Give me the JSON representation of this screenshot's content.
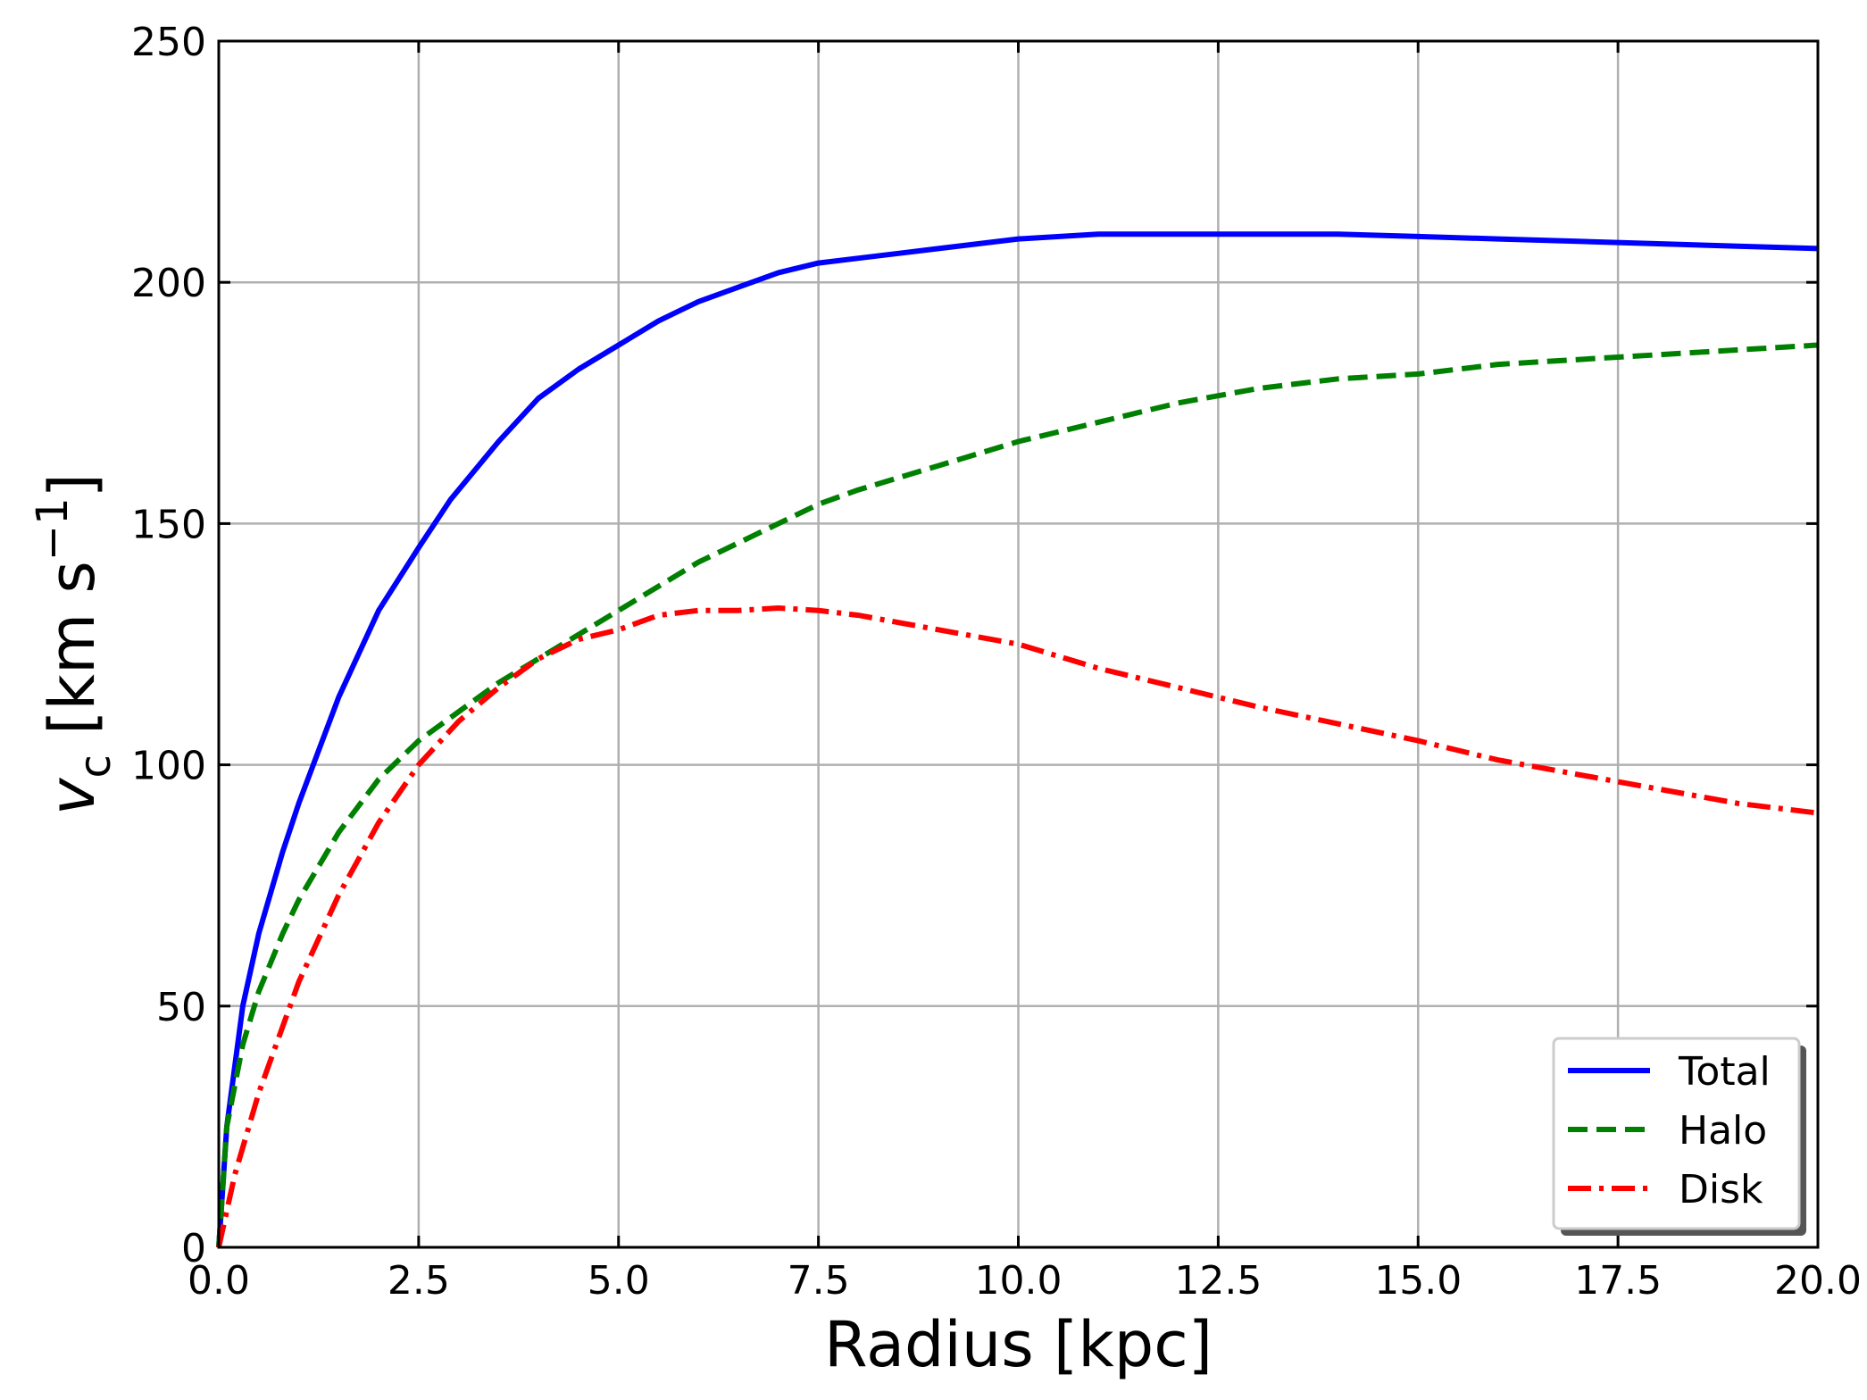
{
  "chart_data": {
    "type": "line",
    "xlabel": "Radius [kpc]",
    "ylabel": {
      "main": "v",
      "sub": "c",
      "unit_pre": " [km s",
      "sup": "−1",
      "unit_post": "]"
    },
    "xlim": [
      0,
      20
    ],
    "ylim": [
      0,
      250
    ],
    "xticks": [
      "0.0",
      "2.5",
      "5.0",
      "7.5",
      "10.0",
      "12.5",
      "15.0",
      "17.5",
      "20.0"
    ],
    "xtick_values": [
      0,
      2.5,
      5,
      7.5,
      10,
      12.5,
      15,
      17.5,
      20
    ],
    "yticks": [
      "0",
      "50",
      "100",
      "150",
      "200",
      "250"
    ],
    "ytick_values": [
      0,
      50,
      100,
      150,
      200,
      250
    ],
    "grid": true,
    "legend_position": "lower-right",
    "series": [
      {
        "name": "Total",
        "color": "#0000ff",
        "dash": "solid",
        "x": [
          0,
          0.1,
          0.3,
          0.5,
          0.8,
          1.0,
          1.5,
          2.0,
          2.5,
          2.9,
          3.5,
          4.0,
          4.5,
          5.0,
          5.5,
          6.0,
          6.5,
          7.0,
          7.5,
          8.0,
          8.5,
          9.0,
          10.0,
          11.0,
          12.0,
          13.0,
          14.0,
          15.0,
          16.0,
          17.0,
          18.0,
          19.0,
          20.0
        ],
        "y": [
          0,
          25,
          50,
          65,
          82,
          92,
          114,
          132,
          145,
          155,
          167,
          176,
          182,
          187,
          192,
          196,
          199,
          202,
          204,
          205,
          206,
          207,
          209,
          210,
          210,
          210,
          210,
          209.5,
          209,
          208.5,
          208,
          207.5,
          207
        ]
      },
      {
        "name": "Halo",
        "color": "#008000",
        "dash": "dashed",
        "x": [
          0,
          0.1,
          0.3,
          0.5,
          0.8,
          1.0,
          1.5,
          2.0,
          2.5,
          3.0,
          3.5,
          4.0,
          4.5,
          5.0,
          5.5,
          6.0,
          7.0,
          7.5,
          8.0,
          9.0,
          10.0,
          11.0,
          12.0,
          13.0,
          14.0,
          15.0,
          16.0,
          17.0,
          18.0,
          19.0,
          20.0
        ],
        "y": [
          0,
          25,
          42,
          53,
          65,
          72,
          86,
          97,
          105,
          111,
          117,
          122,
          127,
          132,
          137,
          142,
          150,
          154,
          157,
          162,
          167,
          171,
          175,
          178,
          180,
          181,
          183,
          184,
          185,
          186,
          187
        ]
      },
      {
        "name": "Disk",
        "color": "#ff0000",
        "dash": "dashdot",
        "x": [
          0,
          0.2,
          0.5,
          1.0,
          1.5,
          2.0,
          2.5,
          3.0,
          3.5,
          4.0,
          4.5,
          5.0,
          5.5,
          6.0,
          6.5,
          7.0,
          7.5,
          8.0,
          9.0,
          10.0,
          11.0,
          12.0,
          13.0,
          14.0,
          15.0,
          16.0,
          17.0,
          18.0,
          19.0,
          20.0
        ],
        "y": [
          0,
          15,
          32,
          55,
          73,
          88,
          100,
          109,
          116,
          122,
          126,
          128,
          131,
          132,
          132,
          132.5,
          132,
          131,
          128,
          125,
          120,
          116,
          112,
          108.5,
          105,
          101,
          98,
          95,
          92,
          90
        ]
      }
    ]
  }
}
